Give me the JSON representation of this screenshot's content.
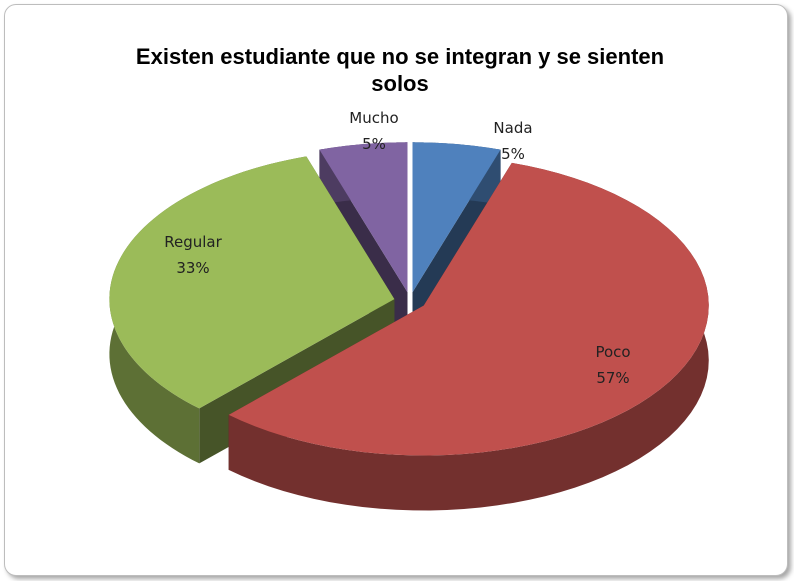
{
  "chart_data": {
    "type": "pie3d",
    "title": "Existen estudiante que no se integran y se sienten solos",
    "categories": [
      "Nada",
      "Poco",
      "Regular",
      "Mucho"
    ],
    "values": [
      5,
      57,
      33,
      5
    ],
    "value_labels": [
      "5%",
      "57%",
      "33%",
      "5%"
    ],
    "colors": [
      "#4f81bd",
      "#c0504d",
      "#9bbb59",
      "#8064a2"
    ]
  }
}
